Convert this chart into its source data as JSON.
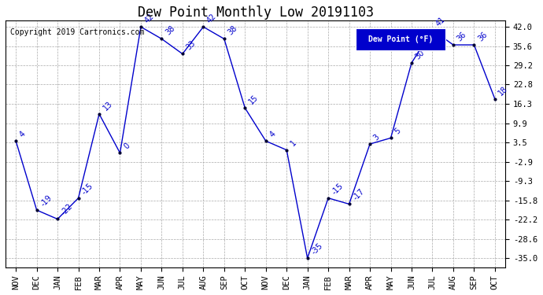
{
  "title": "Dew Point Monthly Low 20191103",
  "copyright": "Copyright 2019 Cartronics.com",
  "legend_label": "Dew Point (°F)",
  "months": [
    "NOV",
    "DEC",
    "JAN",
    "FEB",
    "MAR",
    "APR",
    "MAY",
    "JUN",
    "JUL",
    "AUG",
    "SEP",
    "OCT",
    "NOV",
    "DEC",
    "JAN",
    "FEB",
    "MAR",
    "APR",
    "MAY",
    "JUN",
    "JUL",
    "AUG",
    "SEP",
    "OCT"
  ],
  "values": [
    4,
    -19,
    -22,
    -15,
    13,
    0,
    42,
    38,
    33,
    42,
    38,
    15,
    4,
    1,
    -35,
    -15,
    -17,
    3,
    5,
    30,
    41,
    36,
    36,
    18
  ],
  "ylim_min": -38,
  "ylim_max": 44,
  "yticks": [
    -35.0,
    -28.6,
    -22.2,
    -15.8,
    -9.3,
    -2.9,
    3.5,
    9.9,
    16.3,
    22.8,
    29.2,
    35.6,
    42.0
  ],
  "line_color": "#0000cc",
  "marker_color": "#000033",
  "background_color": "#ffffff",
  "grid_color": "#aaaaaa",
  "title_fontsize": 12,
  "label_fontsize": 7.5,
  "annotation_fontsize": 7,
  "legend_bg": "#0000cc",
  "legend_fg": "#ffffff",
  "copyright_fontsize": 7
}
